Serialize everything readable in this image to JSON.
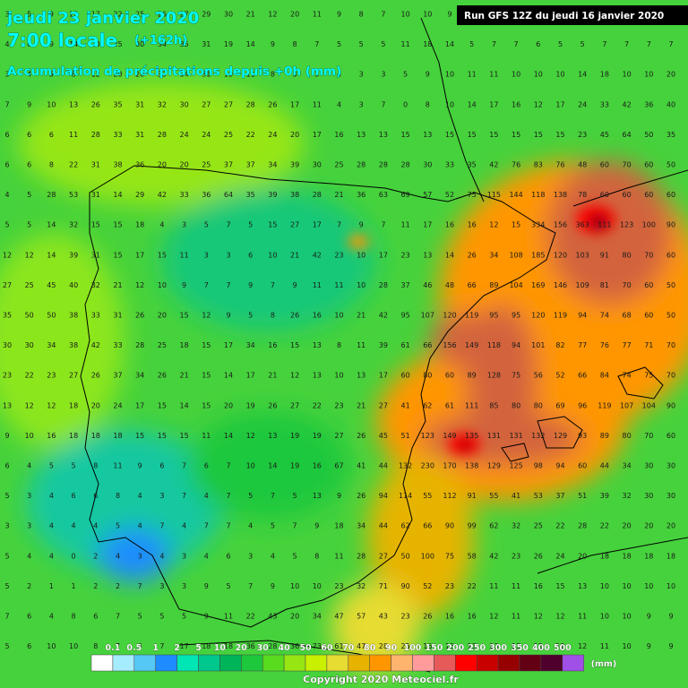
{
  "header": {
    "date": "jeudi 23 janvier 2020",
    "time": "7:00 locale",
    "lead": "(+162h)",
    "subtitle": "Accumulation de précipitations depuis +0h (mm)",
    "run": "Run GFS 12Z du jeudi 16 janvier 2020"
  },
  "grid": {
    "rows": [
      [
        3,
        5,
        9,
        12,
        17,
        22,
        25,
        26,
        27,
        29,
        30,
        21,
        12,
        20,
        11,
        9,
        8,
        7,
        10,
        10,
        9,
        8,
        6,
        5,
        5,
        5,
        4,
        4,
        4,
        4,
        4
      ],
      [
        4,
        6,
        9,
        14,
        20,
        25,
        30,
        34,
        35,
        31,
        19,
        14,
        9,
        8,
        7,
        5,
        5,
        5,
        11,
        18,
        14,
        5,
        7,
        7,
        6,
        5,
        5,
        7,
        7,
        7,
        7
      ],
      [
        3,
        4,
        5,
        8,
        12,
        20,
        28,
        33,
        34,
        31,
        19,
        11,
        8,
        3,
        3,
        4,
        3,
        3,
        5,
        9,
        10,
        11,
        11,
        10,
        10,
        10,
        14,
        18,
        10,
        10,
        20
      ],
      [
        7,
        9,
        10,
        13,
        26,
        35,
        31,
        32,
        30,
        27,
        27,
        28,
        26,
        17,
        11,
        4,
        3,
        7,
        0,
        8,
        10,
        14,
        17,
        16,
        12,
        17,
        24,
        33,
        42,
        36,
        40
      ],
      [
        6,
        6,
        6,
        11,
        28,
        33,
        31,
        28,
        24,
        24,
        25,
        22,
        24,
        20,
        17,
        16,
        13,
        13,
        15,
        13,
        15,
        15,
        15,
        15,
        15,
        15,
        23,
        45,
        64,
        50,
        35
      ],
      [
        6,
        6,
        8,
        22,
        31,
        38,
        36,
        20,
        20,
        25,
        37,
        37,
        34,
        39,
        30,
        25,
        28,
        28,
        28,
        30,
        33,
        35,
        42,
        76,
        83,
        76,
        48,
        60,
        70,
        60,
        50
      ],
      [
        4,
        5,
        28,
        53,
        31,
        14,
        29,
        42,
        33,
        36,
        64,
        35,
        39,
        38,
        28,
        21,
        36,
        63,
        69,
        57,
        52,
        75,
        115,
        144,
        118,
        138,
        78,
        60,
        60,
        60,
        60
      ],
      [
        5,
        5,
        14,
        32,
        15,
        15,
        18,
        4,
        3,
        5,
        7,
        5,
        15,
        27,
        17,
        7,
        9,
        7,
        11,
        17,
        16,
        16,
        12,
        15,
        334,
        156,
        363,
        111,
        123,
        100,
        90
      ],
      [
        12,
        12,
        14,
        39,
        31,
        15,
        17,
        15,
        11,
        3,
        3,
        6,
        10,
        21,
        42,
        23,
        10,
        17,
        23,
        13,
        14,
        26,
        34,
        108,
        185,
        120,
        103,
        91,
        80,
        70,
        60
      ],
      [
        27,
        25,
        45,
        40,
        32,
        21,
        12,
        10,
        9,
        7,
        7,
        9,
        7,
        9,
        11,
        11,
        10,
        28,
        37,
        46,
        48,
        66,
        89,
        104,
        169,
        146,
        109,
        81,
        70,
        60,
        50
      ],
      [
        35,
        50,
        50,
        38,
        33,
        31,
        26,
        20,
        15,
        12,
        9,
        5,
        8,
        26,
        16,
        10,
        21,
        42,
        95,
        107,
        120,
        119,
        95,
        95,
        120,
        119,
        94,
        74,
        68,
        60,
        50
      ],
      [
        30,
        30,
        34,
        38,
        42,
        33,
        28,
        25,
        18,
        15,
        17,
        34,
        16,
        15,
        13,
        8,
        11,
        39,
        61,
        66,
        156,
        149,
        118,
        94,
        101,
        82,
        77,
        76,
        77,
        71,
        70
      ],
      [
        23,
        22,
        23,
        27,
        26,
        37,
        34,
        26,
        21,
        15,
        14,
        17,
        21,
        12,
        13,
        10,
        13,
        17,
        60,
        80,
        60,
        89,
        128,
        75,
        56,
        52,
        66,
        84,
        74,
        75,
        70
      ],
      [
        13,
        12,
        12,
        18,
        20,
        24,
        17,
        15,
        14,
        15,
        20,
        19,
        26,
        27,
        22,
        23,
        21,
        27,
        41,
        62,
        61,
        111,
        85,
        80,
        80,
        69,
        96,
        119,
        107,
        104,
        90
      ],
      [
        9,
        10,
        16,
        18,
        18,
        18,
        15,
        15,
        15,
        11,
        14,
        12,
        13,
        19,
        19,
        27,
        26,
        45,
        51,
        123,
        149,
        135,
        131,
        131,
        132,
        129,
        93,
        89,
        80,
        70,
        60
      ],
      [
        6,
        4,
        5,
        5,
        8,
        11,
        9,
        6,
        7,
        6,
        7,
        10,
        14,
        19,
        16,
        67,
        41,
        44,
        132,
        230,
        170,
        138,
        129,
        125,
        98,
        94,
        60,
        44,
        34,
        30,
        30
      ],
      [
        5,
        3,
        4,
        6,
        6,
        8,
        4,
        3,
        7,
        4,
        7,
        5,
        7,
        5,
        13,
        9,
        26,
        94,
        114,
        55,
        112,
        91,
        55,
        41,
        53,
        37,
        51,
        39,
        32,
        30,
        30
      ],
      [
        3,
        3,
        4,
        4,
        4,
        5,
        4,
        7,
        4,
        7,
        7,
        4,
        5,
        7,
        9,
        18,
        34,
        44,
        62,
        66,
        90,
        99,
        62,
        32,
        25,
        22,
        28,
        22,
        20,
        20,
        20
      ],
      [
        5,
        4,
        4,
        0,
        2,
        4,
        3,
        4,
        3,
        4,
        6,
        3,
        4,
        5,
        8,
        11,
        28,
        27,
        50,
        100,
        75,
        58,
        42,
        23,
        26,
        24,
        20,
        18,
        18,
        18,
        18
      ],
      [
        5,
        2,
        1,
        1,
        2,
        2,
        7,
        3,
        3,
        9,
        5,
        7,
        9,
        10,
        10,
        23,
        32,
        71,
        90,
        52,
        23,
        22,
        11,
        11,
        16,
        15,
        13,
        10,
        10,
        10,
        10
      ],
      [
        7,
        6,
        4,
        8,
        6,
        7,
        5,
        5,
        5,
        9,
        11,
        22,
        43,
        20,
        34,
        47,
        57,
        43,
        23,
        26,
        16,
        16,
        12,
        11,
        12,
        12,
        11,
        10,
        10,
        9,
        9
      ],
      [
        5,
        6,
        10,
        10,
        8,
        7,
        4,
        7,
        17,
        18,
        18,
        36,
        28,
        36,
        73,
        61,
        47,
        28,
        25,
        16,
        15,
        13,
        13,
        13,
        12,
        12,
        12,
        11,
        10,
        9,
        9
      ]
    ]
  },
  "legend": {
    "labels": [
      "0.1",
      "0.5",
      "1",
      "2",
      "5",
      "10",
      "20",
      "30",
      "40",
      "50",
      "60",
      "70",
      "80",
      "90",
      "100",
      "150",
      "200",
      "250",
      "300",
      "350",
      "400",
      "500"
    ],
    "colors": [
      "#ffffff",
      "#a6ecff",
      "#55c8f5",
      "#1e8cff",
      "#00e6b4",
      "#00c88c",
      "#00b45a",
      "#1ec83c",
      "#5adc1e",
      "#96e614",
      "#c8f000",
      "#e6dc32",
      "#e6b400",
      "#ff9600",
      "#ffb46e",
      "#ff9b9b",
      "#e65a5a",
      "#ff0000",
      "#c80000",
      "#960000",
      "#640014",
      "#50002d",
      "#a050e6"
    ],
    "unit": "(mm)"
  },
  "footer": {
    "copyright": "Copyright 2020 Meteociel.fr"
  }
}
